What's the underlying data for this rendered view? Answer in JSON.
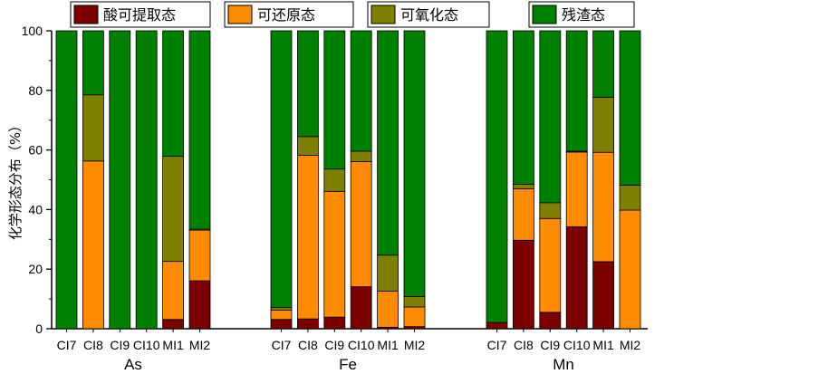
{
  "chart_data": {
    "type": "bar",
    "stacked": true,
    "ylabel": "化学形态分布（%）",
    "xlabel": "",
    "ylim": [
      0,
      100
    ],
    "yticks": [
      0,
      20,
      40,
      60,
      80,
      100
    ],
    "legend": {
      "placement": "top",
      "frame": true
    },
    "series": [
      {
        "name": "酸可提取态",
        "color": "#7B0000"
      },
      {
        "name": "可还原态",
        "color": "#FF8C00"
      },
      {
        "name": "可氧化态",
        "color": "#808000"
      },
      {
        "name": "残渣态",
        "color": "#008000"
      }
    ],
    "groups": [
      {
        "name": "As",
        "categories": [
          "CI7",
          "CI8",
          "CI9",
          "CI10",
          "MI1",
          "MI2"
        ],
        "values": [
          [
            0,
            0,
            0,
            100
          ],
          [
            0,
            56.3,
            22.2,
            21.5
          ],
          [
            0,
            0,
            0,
            100
          ],
          [
            0,
            0,
            0,
            100
          ],
          [
            3.1,
            19.5,
            35.3,
            42.1
          ],
          [
            16.1,
            17.0,
            0.3,
            66.6
          ]
        ]
      },
      {
        "name": "Fe",
        "categories": [
          "CI7",
          "CI8",
          "CI9",
          "CI10",
          "MI1",
          "MI2"
        ],
        "values": [
          [
            3.1,
            3.1,
            0.9,
            92.9
          ],
          [
            3.3,
            54.9,
            6.3,
            35.5
          ],
          [
            3.9,
            42.2,
            7.5,
            46.4
          ],
          [
            14.1,
            42.0,
            3.5,
            40.4
          ],
          [
            0.5,
            12.1,
            12.1,
            75.3
          ],
          [
            0.7,
            6.6,
            3.5,
            89.2
          ]
        ]
      },
      {
        "name": "Mn",
        "categories": [
          "CI7",
          "CI8",
          "CI9",
          "CI10",
          "MI1",
          "MI2"
        ],
        "values": [
          [
            2.1,
            0,
            0,
            97.9
          ],
          [
            29.7,
            17.3,
            1.5,
            51.5
          ],
          [
            5.5,
            31.5,
            5.3,
            57.7
          ],
          [
            34.2,
            25.1,
            0.3,
            40.4
          ],
          [
            22.5,
            36.7,
            18.5,
            22.3
          ],
          [
            0,
            39.8,
            8.4,
            51.8
          ]
        ]
      }
    ]
  }
}
